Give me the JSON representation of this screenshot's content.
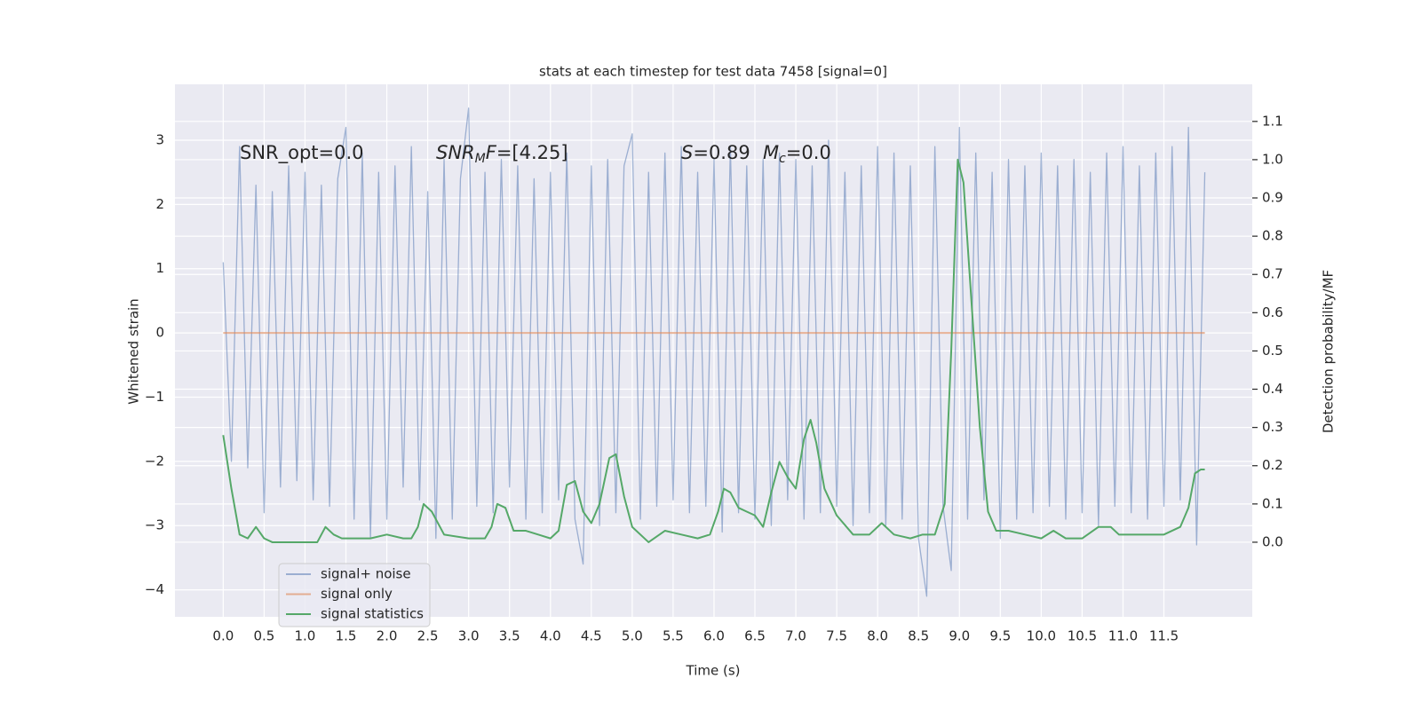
{
  "chart_data": {
    "type": "line",
    "title": "stats at each timestep for test data 7458 [signal=0]",
    "x_label": "Time (s)",
    "y_label": "Whitened strain",
    "y2_label": "Detection probability/MF",
    "annotations": [
      [
        {
          "text": "SNR_opt=0.0"
        }
      ],
      [
        {
          "text": "SNR",
          "italic": true
        },
        {
          "text": "M",
          "italic": true,
          "sub": true
        },
        {
          "text": "F",
          "italic": true
        },
        {
          "text": "=[4.25]"
        }
      ],
      [
        {
          "text": "S",
          "italic": true
        },
        {
          "text": "=0.89"
        }
      ],
      [
        {
          "text": "M",
          "italic": true
        },
        {
          "text": "c",
          "italic": true,
          "sub": true
        },
        {
          "text": "=0.0"
        }
      ]
    ],
    "xlim": [
      -0.59,
      12.58
    ],
    "ylim": [
      -4.42,
      3.87
    ],
    "y2lim": [
      -0.195,
      1.197
    ],
    "xticks": [
      {
        "value": 0,
        "label": "0.0"
      },
      0.5,
      {
        "value": 1,
        "label": "1.0"
      },
      1.5,
      {
        "value": 2,
        "label": "2.0"
      },
      2.5,
      {
        "value": 3,
        "label": "3.0"
      },
      3.5,
      {
        "value": 4,
        "label": "4.0"
      },
      4.5,
      {
        "value": 5,
        "label": "5.0"
      },
      5.5,
      {
        "value": 6,
        "label": "6.0"
      },
      6.5,
      {
        "value": 7,
        "label": "7.0"
      },
      7.5,
      {
        "value": 8,
        "label": "8.0"
      },
      8.5,
      {
        "value": 9,
        "label": "9.0"
      },
      9.5,
      {
        "value": 10,
        "label": "10.0"
      },
      10.5,
      {
        "value": 11,
        "label": "11.0"
      },
      11.5
    ],
    "yticks": [
      {
        "value": -4,
        "label": "−4"
      },
      {
        "value": -3,
        "label": "−3"
      },
      {
        "value": -2,
        "label": "−2"
      },
      {
        "value": -1,
        "label": "−1"
      },
      0,
      1,
      2,
      3
    ],
    "y2ticks": [
      {
        "value": 0,
        "label": "0.0"
      },
      0.1,
      0.2,
      0.3,
      0.4,
      0.5,
      0.6,
      0.7,
      0.8,
      0.9,
      {
        "value": 1,
        "label": "1.0"
      },
      1.1
    ],
    "grid": true,
    "legend": "lower left",
    "series": [
      {
        "name": "signal+ noise",
        "color": "#4c72b0",
        "alpha": 0.5,
        "x": [
          0,
          0.1,
          0.2,
          0.3,
          0.4,
          0.5,
          0.6,
          0.7,
          0.8,
          0.9,
          1,
          1.1,
          1.2,
          1.3,
          1.4,
          1.5,
          1.6,
          1.7,
          1.8,
          1.9,
          2,
          2.1,
          2.2,
          2.3,
          2.4,
          2.5,
          2.6,
          2.7,
          2.8,
          2.9,
          3,
          3.1,
          3.2,
          3.3,
          3.4,
          3.5,
          3.6,
          3.7,
          3.8,
          3.9,
          4,
          4.1,
          4.2,
          4.3,
          4.4,
          4.5,
          4.6,
          4.7,
          4.8,
          4.9,
          5,
          5.1,
          5.2,
          5.3,
          5.4,
          5.5,
          5.6,
          5.7,
          5.8,
          5.9,
          6,
          6.1,
          6.2,
          6.3,
          6.4,
          6.5,
          6.6,
          6.7,
          6.8,
          6.9,
          7,
          7.1,
          7.2,
          7.3,
          7.4,
          7.5,
          7.6,
          7.7,
          7.8,
          7.9,
          8,
          8.1,
          8.2,
          8.3,
          8.4,
          8.5,
          8.6,
          8.7,
          8.8,
          8.9,
          9,
          9.1,
          9.2,
          9.3,
          9.4,
          9.5,
          9.6,
          9.7,
          9.8,
          9.9,
          10,
          10.1,
          10.2,
          10.3,
          10.4,
          10.5,
          10.6,
          10.7,
          10.8,
          10.9,
          11,
          11.1,
          11.2,
          11.3,
          11.4,
          11.5,
          11.6,
          11.7,
          11.8,
          11.9,
          12
        ],
        "values": [
          1.1,
          -2.0,
          2.9,
          -2.1,
          2.3,
          -2.8,
          2.2,
          -2.4,
          2.6,
          -2.3,
          2.5,
          -2.6,
          2.3,
          -2.7,
          2.4,
          3.2,
          -2.9,
          2.8,
          -3.2,
          2.5,
          -2.9,
          2.6,
          -2.4,
          2.9,
          -2.6,
          2.2,
          -3.2,
          2.7,
          -2.9,
          2.4,
          3.5,
          -2.7,
          2.5,
          -2.8,
          2.7,
          -2.4,
          2.6,
          -2.9,
          2.4,
          -2.8,
          2.5,
          -2.6,
          2.8,
          -2.9,
          -3.6,
          2.6,
          -3.0,
          2.7,
          -2.8,
          2.6,
          3.1,
          -2.9,
          2.5,
          -2.7,
          2.8,
          -2.6,
          2.9,
          -2.8,
          2.5,
          -2.7,
          2.7,
          -3.1,
          2.9,
          -2.8,
          2.6,
          -2.9,
          2.7,
          -3.0,
          2.8,
          -2.6,
          2.7,
          -2.9,
          2.6,
          -2.8,
          3.0,
          -2.7,
          2.5,
          -3.0,
          2.6,
          -2.8,
          2.9,
          -3.0,
          2.8,
          -2.9,
          2.6,
          -3.2,
          -4.1,
          2.9,
          -2.7,
          -3.7,
          3.2,
          -2.9,
          2.8,
          -2.6,
          2.5,
          -3.2,
          2.7,
          -2.9,
          2.6,
          -2.8,
          2.8,
          -2.7,
          2.6,
          -2.9,
          2.7,
          -2.8,
          2.5,
          -3.0,
          2.8,
          -2.7,
          2.9,
          -2.8,
          2.6,
          -2.9,
          2.8,
          -2.7,
          2.9,
          -2.6,
          3.2,
          -3.3,
          2.5
        ]
      },
      {
        "name": "signal only",
        "color": "#dd8452",
        "alpha": 0.6,
        "x": [
          0,
          12
        ],
        "values": [
          0,
          0
        ]
      },
      {
        "name": "signal statistics",
        "color": "#55a868",
        "alpha": 1,
        "axis": "y2",
        "x": [
          0,
          0.1,
          0.2,
          0.3,
          0.4,
          0.5,
          0.6,
          0.8,
          1.0,
          1.15,
          1.25,
          1.35,
          1.45,
          1.6,
          1.8,
          2.0,
          2.2,
          2.3,
          2.38,
          2.45,
          2.55,
          2.7,
          3.0,
          3.2,
          3.28,
          3.35,
          3.45,
          3.55,
          3.7,
          3.85,
          4.0,
          4.1,
          4.2,
          4.3,
          4.4,
          4.5,
          4.6,
          4.72,
          4.8,
          4.9,
          5.0,
          5.2,
          5.4,
          5.6,
          5.8,
          5.95,
          6.05,
          6.12,
          6.2,
          6.3,
          6.4,
          6.5,
          6.6,
          6.7,
          6.8,
          6.9,
          7.0,
          7.1,
          7.18,
          7.25,
          7.35,
          7.5,
          7.7,
          7.9,
          8.05,
          8.2,
          8.4,
          8.55,
          8.7,
          8.82,
          8.9,
          8.98,
          9.05,
          9.15,
          9.25,
          9.35,
          9.45,
          9.6,
          9.8,
          10.0,
          10.15,
          10.3,
          10.5,
          10.7,
          10.85,
          10.95,
          11.1,
          11.3,
          11.5,
          11.7,
          11.8,
          11.88,
          11.95,
          12.0
        ],
        "values": [
          0.28,
          0.14,
          0.02,
          0.01,
          0.04,
          0.01,
          0.0,
          0.0,
          0.0,
          0.0,
          0.04,
          0.02,
          0.01,
          0.01,
          0.01,
          0.02,
          0.01,
          0.01,
          0.04,
          0.1,
          0.08,
          0.02,
          0.01,
          0.01,
          0.04,
          0.1,
          0.09,
          0.03,
          0.03,
          0.02,
          0.01,
          0.03,
          0.15,
          0.16,
          0.08,
          0.05,
          0.1,
          0.22,
          0.23,
          0.12,
          0.04,
          0.0,
          0.03,
          0.02,
          0.01,
          0.02,
          0.08,
          0.14,
          0.13,
          0.09,
          0.08,
          0.07,
          0.04,
          0.13,
          0.21,
          0.17,
          0.14,
          0.27,
          0.32,
          0.26,
          0.14,
          0.07,
          0.02,
          0.02,
          0.05,
          0.02,
          0.01,
          0.02,
          0.02,
          0.1,
          0.5,
          1.0,
          0.94,
          0.62,
          0.3,
          0.08,
          0.03,
          0.03,
          0.02,
          0.01,
          0.03,
          0.01,
          0.01,
          0.04,
          0.04,
          0.02,
          0.02,
          0.02,
          0.02,
          0.04,
          0.09,
          0.18,
          0.19,
          0.19
        ]
      }
    ]
  }
}
